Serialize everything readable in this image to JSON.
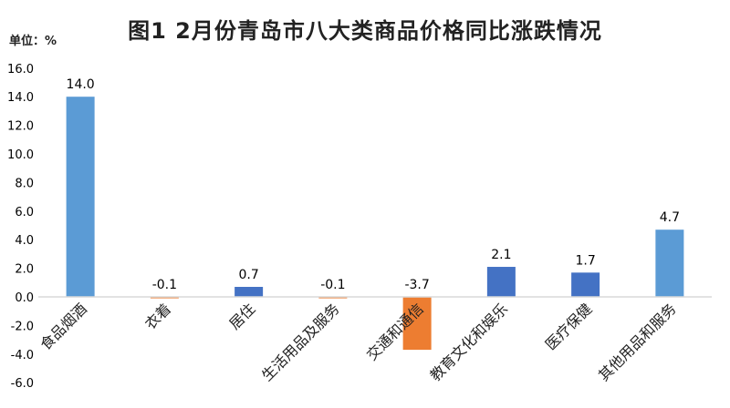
{
  "chart_data": {
    "type": "bar",
    "title": "图1  2月份青岛市八大类商品价格同比涨跌情况",
    "unit_label": "单位：%",
    "categories": [
      "食品烟酒",
      "衣着",
      "居住",
      "生活用品及服务",
      "交通和通信",
      "教育文化和娱乐",
      "医疗保健",
      "其他用品和服务"
    ],
    "values": [
      14.0,
      -0.1,
      0.7,
      -0.1,
      -3.7,
      2.1,
      1.7,
      4.7
    ],
    "value_labels": [
      "14.0",
      "-0.1",
      "0.7",
      "-0.1",
      "-3.7",
      "2.1",
      "1.7",
      "4.7"
    ],
    "bar_colors": [
      "#5b9bd5",
      "#ed7d31",
      "#4472c4",
      "#ed7d31",
      "#ed7d31",
      "#4472c4",
      "#4472c4",
      "#5b9bd5"
    ],
    "yticks": [
      "16.0",
      "14.0",
      "12.0",
      "10.0",
      "8.0",
      "6.0",
      "4.0",
      "2.0",
      "0.0",
      "-2.0",
      "-4.0",
      "-6.0"
    ],
    "ylim": [
      -6,
      16
    ],
    "xlabel": "",
    "ylabel": "",
    "grid": false,
    "legend": "none"
  }
}
